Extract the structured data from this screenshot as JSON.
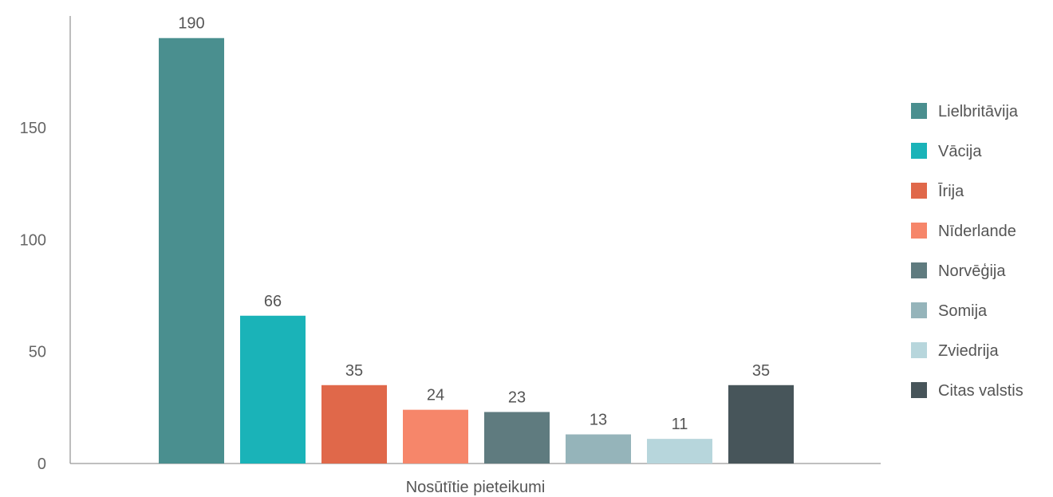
{
  "chart_data": {
    "type": "bar",
    "title": "",
    "xlabel": "Nosūtītie pieteikumi",
    "ylabel": "",
    "ylim": [
      0,
      200
    ],
    "yticks": [
      0,
      50,
      100,
      150
    ],
    "grid": false,
    "legend_position": "right",
    "data_labels": true,
    "categories": [
      "Lielbritāvija",
      "Vācija",
      "Īrija",
      "Nīderlande",
      "Norvēģija",
      "Somija",
      "Zviedrija",
      "Citas valstis"
    ],
    "values": [
      190,
      66,
      35,
      24,
      23,
      13,
      11,
      35
    ],
    "colors": [
      "#4a8f8f",
      "#1ab3b8",
      "#e0684a",
      "#f6866a",
      "#5f7b7f",
      "#95b4ba",
      "#b7d6dc",
      "#47555a"
    ]
  }
}
